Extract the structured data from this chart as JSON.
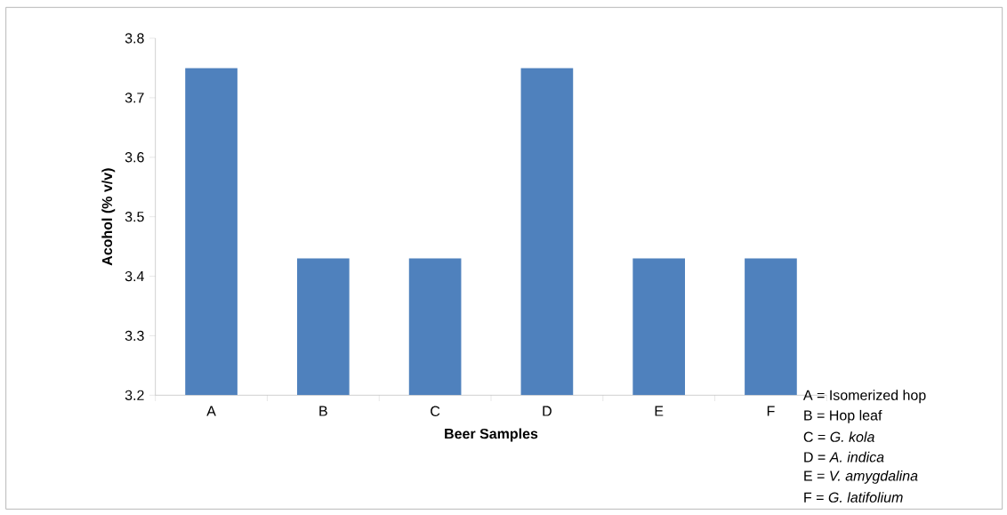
{
  "chart_data": {
    "type": "bar",
    "xlabel": "Beer Samples",
    "ylabel": "Acohol (% v/v)",
    "categories": [
      "A",
      "B",
      "C",
      "D",
      "E",
      "F"
    ],
    "values": [
      3.75,
      3.43,
      3.43,
      3.75,
      3.43,
      3.43
    ],
    "color": "#4f81bd",
    "ylim": [
      3.2,
      3.8
    ],
    "yticks": [
      3.2,
      3.3,
      3.4,
      3.5,
      3.6,
      3.7,
      3.8
    ],
    "grid": false,
    "annotations": [
      "A = Isomerized hop",
      "B = Hop leaf",
      "C = *G. kola*",
      "D = *A. indica*",
      "E = *V. amygdalina*",
      "F = *G. latifolium*"
    ]
  }
}
